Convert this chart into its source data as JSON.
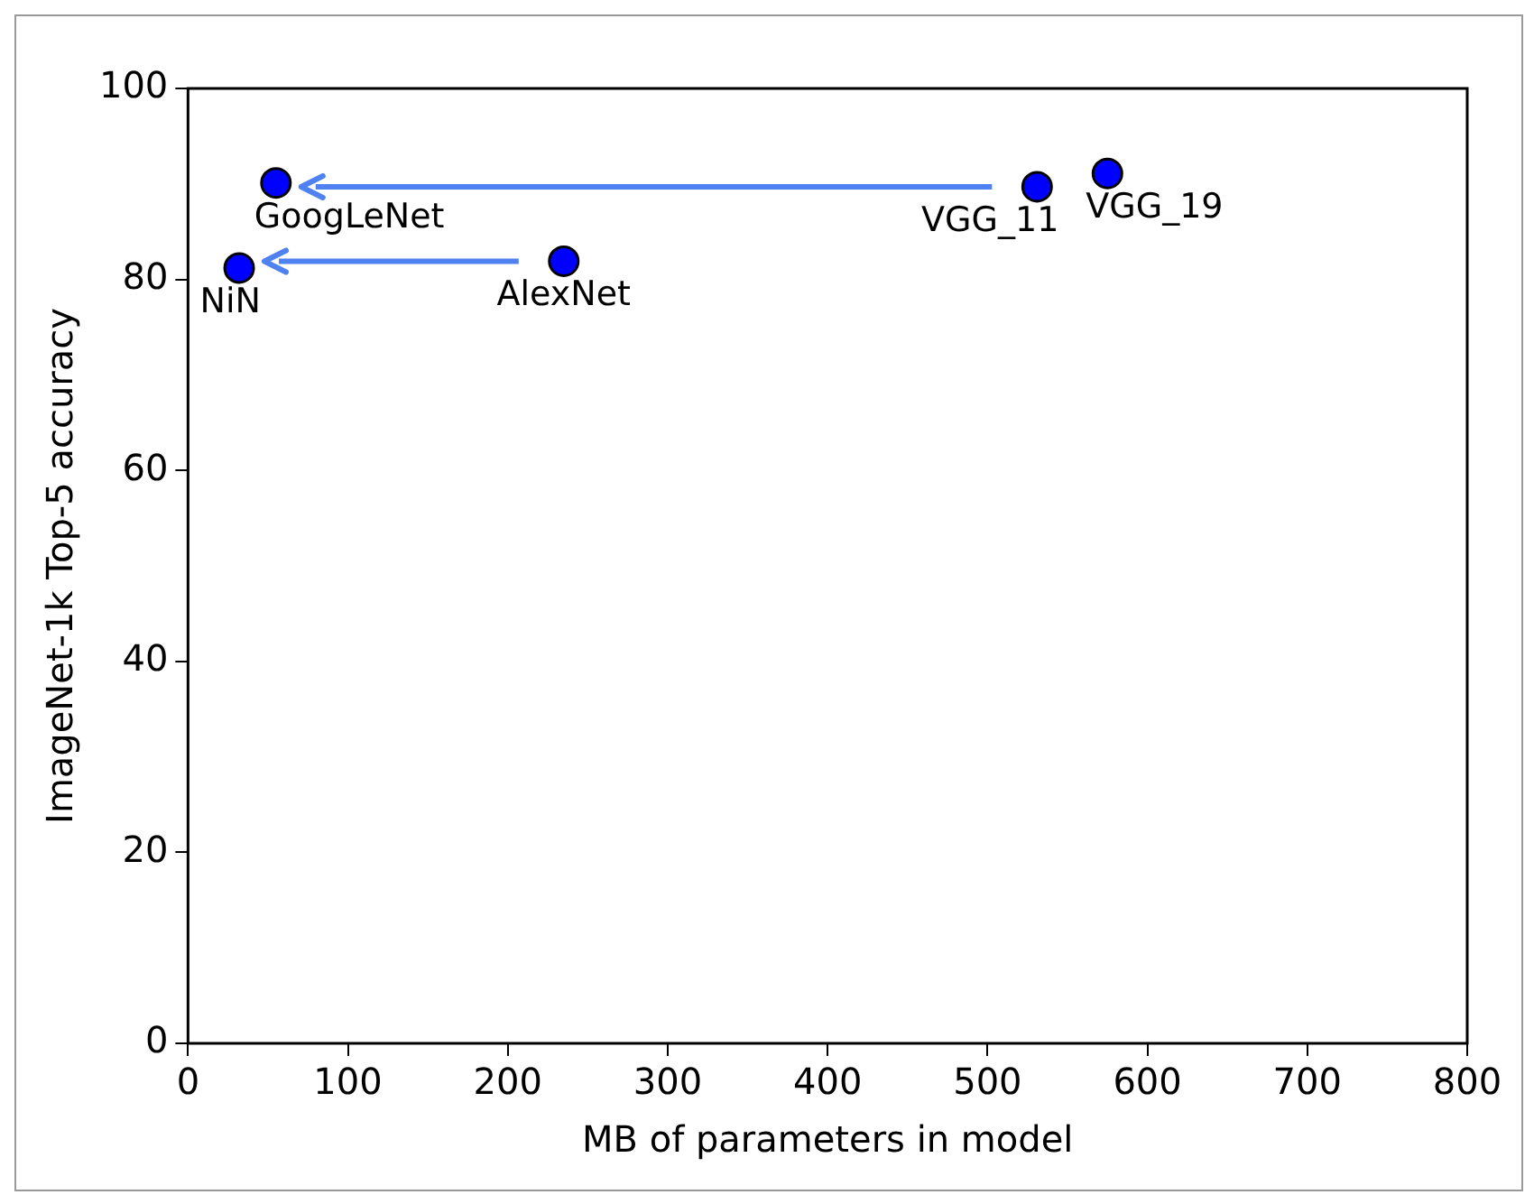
{
  "chart_data": {
    "type": "scatter",
    "xlabel": "MB of parameters in model",
    "ylabel": "ImageNet-1k Top-5 accuracy",
    "series": [
      {
        "color": "#0000ff",
        "x": [
          32,
          55,
          235,
          531,
          575
        ],
        "values": [
          81.2,
          90.1,
          81.9,
          89.7,
          91.1
        ]
      }
    ],
    "annotations": [
      {
        "text": "NiN",
        "x": 32,
        "y": 81.2
      },
      {
        "text": "GoogLeNet",
        "x": 55,
        "y": 90.1
      },
      {
        "text": "AlexNet",
        "x": 235,
        "y": 81.9
      },
      {
        "text": "VGG_11",
        "x": 531,
        "y": 89.7
      },
      {
        "text": "VGG_19",
        "x": 575,
        "y": 91.1
      }
    ],
    "xlim": [
      0,
      800
    ],
    "xticks": [
      0,
      100,
      200,
      300,
      400,
      500,
      600,
      700,
      800
    ],
    "ylim": [
      0,
      100
    ],
    "yticks": [
      0,
      20,
      40,
      60,
      80,
      100
    ],
    "grid": false,
    "legend": false,
    "marker": "circle"
  }
}
